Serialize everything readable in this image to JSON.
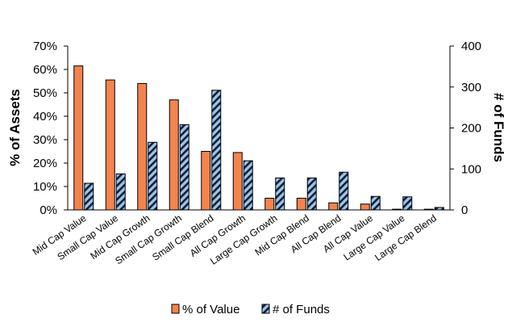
{
  "chart_data": {
    "type": "bar",
    "categories": [
      "Mid Cap Value",
      "Small Cap Value",
      "Mid Cap Growth",
      "Small Cap Growth",
      "Small Cap Blend",
      "All Cap Growth",
      "Large Cap Growth",
      "Mid Cap Blend",
      "All Cap Blend",
      "All Cap Value",
      "Large Cap Value",
      "Large Cap Blend"
    ],
    "series": [
      {
        "name": "% of Value",
        "axis": "left",
        "unit": "%",
        "color": "#f4844f",
        "values": [
          61.5,
          55.5,
          54,
          47,
          25,
          24.5,
          5,
          5,
          3,
          2.5,
          0.3,
          0.3
        ]
      },
      {
        "name": "# of Funds",
        "axis": "right",
        "color": "#9dc3e6",
        "pattern": "diagonal-hatch",
        "values": [
          65,
          88,
          165,
          208,
          292,
          120,
          78,
          78,
          92,
          33,
          32,
          6
        ]
      }
    ],
    "ylabel": "% of Assets",
    "y2label": "# of Funds",
    "ylim": [
      0,
      70
    ],
    "y2lim": [
      0,
      400
    ],
    "yticks": [
      "0%",
      "10%",
      "20%",
      "30%",
      "40%",
      "50%",
      "60%",
      "70%"
    ],
    "y2ticks": [
      "0",
      "100",
      "200",
      "300",
      "400"
    ],
    "legend_position": "bottom",
    "grid": false
  }
}
